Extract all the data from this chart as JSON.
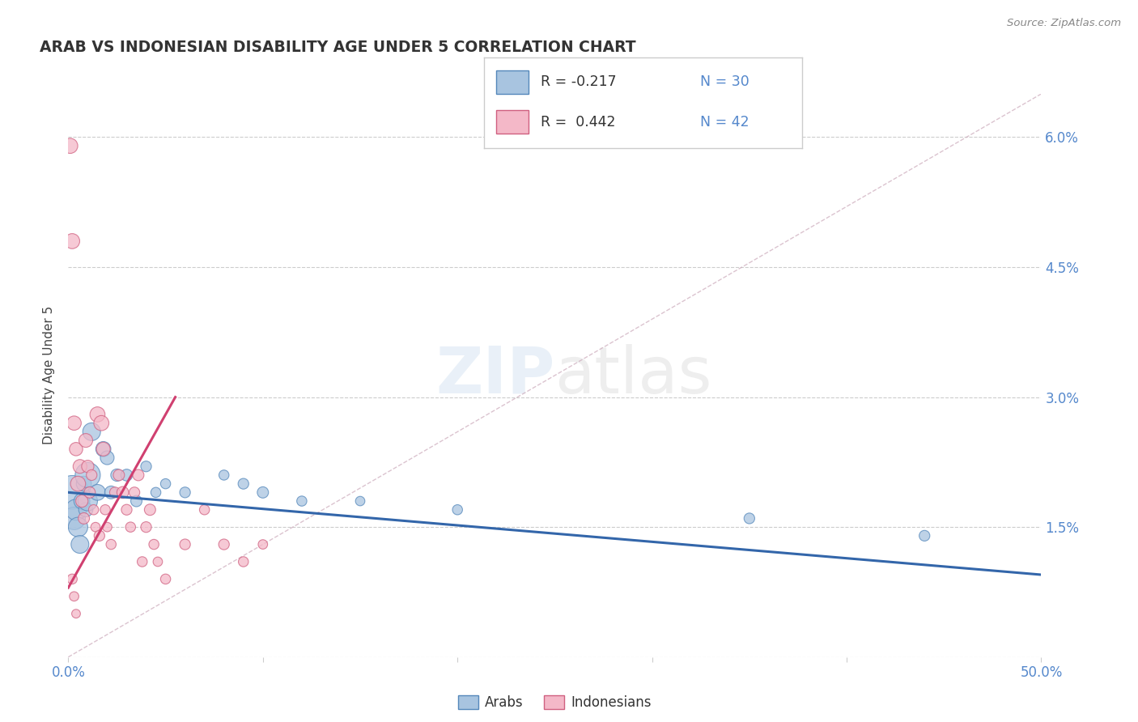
{
  "title": "ARAB VS INDONESIAN DISABILITY AGE UNDER 5 CORRELATION CHART",
  "source": "Source: ZipAtlas.com",
  "ylabel": "Disability Age Under 5",
  "xlim": [
    0.0,
    0.5
  ],
  "ylim": [
    0.0,
    0.065
  ],
  "arab_color": "#a8c4e0",
  "arab_edge_color": "#5588bb",
  "arab_line_color": "#3366aa",
  "indonesian_color": "#f4b8c8",
  "indonesian_edge_color": "#d06080",
  "indonesian_line_color": "#d04070",
  "arab_R": -0.217,
  "arab_N": 30,
  "indonesian_R": 0.442,
  "indonesian_N": 42,
  "legend_arab_label": "Arabs",
  "legend_indonesian_label": "Indonesians",
  "watermark_zip": "ZIP",
  "watermark_atlas": "atlas",
  "background_color": "#ffffff",
  "grid_color": "#cccccc",
  "title_color": "#333333",
  "tick_color": "#5588cc",
  "right_axis_color": "#5588cc",
  "ref_line_color": "#ccaabb",
  "arab_line_x": [
    0.0,
    0.5
  ],
  "arab_line_y": [
    0.019,
    0.0095
  ],
  "indonesian_line_x": [
    0.0,
    0.055
  ],
  "indonesian_line_y": [
    0.008,
    0.03
  ],
  "arab_points": [
    [
      0.002,
      0.019
    ],
    [
      0.003,
      0.016
    ],
    [
      0.004,
      0.017
    ],
    [
      0.005,
      0.015
    ],
    [
      0.006,
      0.013
    ],
    [
      0.007,
      0.018
    ],
    [
      0.008,
      0.02
    ],
    [
      0.009,
      0.017
    ],
    [
      0.01,
      0.021
    ],
    [
      0.01,
      0.018
    ],
    [
      0.012,
      0.026
    ],
    [
      0.015,
      0.019
    ],
    [
      0.018,
      0.024
    ],
    [
      0.02,
      0.023
    ],
    [
      0.022,
      0.019
    ],
    [
      0.025,
      0.021
    ],
    [
      0.03,
      0.021
    ],
    [
      0.035,
      0.018
    ],
    [
      0.04,
      0.022
    ],
    [
      0.045,
      0.019
    ],
    [
      0.05,
      0.02
    ],
    [
      0.06,
      0.019
    ],
    [
      0.08,
      0.021
    ],
    [
      0.09,
      0.02
    ],
    [
      0.1,
      0.019
    ],
    [
      0.12,
      0.018
    ],
    [
      0.15,
      0.018
    ],
    [
      0.2,
      0.017
    ],
    [
      0.35,
      0.016
    ],
    [
      0.44,
      0.014
    ]
  ],
  "arab_sizes": [
    900,
    400,
    350,
    300,
    250,
    200,
    180,
    160,
    500,
    300,
    250,
    200,
    180,
    150,
    130,
    120,
    110,
    100,
    90,
    80,
    80,
    90,
    80,
    90,
    100,
    80,
    70,
    80,
    90,
    90
  ],
  "indonesian_points": [
    [
      0.001,
      0.059
    ],
    [
      0.002,
      0.048
    ],
    [
      0.003,
      0.027
    ],
    [
      0.004,
      0.024
    ],
    [
      0.005,
      0.02
    ],
    [
      0.006,
      0.022
    ],
    [
      0.007,
      0.018
    ],
    [
      0.008,
      0.016
    ],
    [
      0.009,
      0.025
    ],
    [
      0.01,
      0.022
    ],
    [
      0.011,
      0.019
    ],
    [
      0.012,
      0.021
    ],
    [
      0.013,
      0.017
    ],
    [
      0.014,
      0.015
    ],
    [
      0.015,
      0.028
    ],
    [
      0.016,
      0.014
    ],
    [
      0.017,
      0.027
    ],
    [
      0.018,
      0.024
    ],
    [
      0.019,
      0.017
    ],
    [
      0.02,
      0.015
    ],
    [
      0.022,
      0.013
    ],
    [
      0.024,
      0.019
    ],
    [
      0.026,
      0.021
    ],
    [
      0.028,
      0.019
    ],
    [
      0.03,
      0.017
    ],
    [
      0.032,
      0.015
    ],
    [
      0.034,
      0.019
    ],
    [
      0.036,
      0.021
    ],
    [
      0.038,
      0.011
    ],
    [
      0.04,
      0.015
    ],
    [
      0.042,
      0.017
    ],
    [
      0.044,
      0.013
    ],
    [
      0.046,
      0.011
    ],
    [
      0.05,
      0.009
    ],
    [
      0.06,
      0.013
    ],
    [
      0.07,
      0.017
    ],
    [
      0.08,
      0.013
    ],
    [
      0.09,
      0.011
    ],
    [
      0.1,
      0.013
    ],
    [
      0.002,
      0.009
    ],
    [
      0.003,
      0.007
    ],
    [
      0.004,
      0.005
    ]
  ],
  "indonesian_sizes": [
    180,
    180,
    160,
    140,
    180,
    150,
    120,
    100,
    150,
    120,
    100,
    90,
    80,
    70,
    180,
    90,
    180,
    150,
    80,
    70,
    80,
    90,
    100,
    110,
    90,
    80,
    90,
    100,
    80,
    90,
    100,
    80,
    70,
    80,
    90,
    80,
    90,
    80,
    70,
    80,
    70,
    60
  ]
}
